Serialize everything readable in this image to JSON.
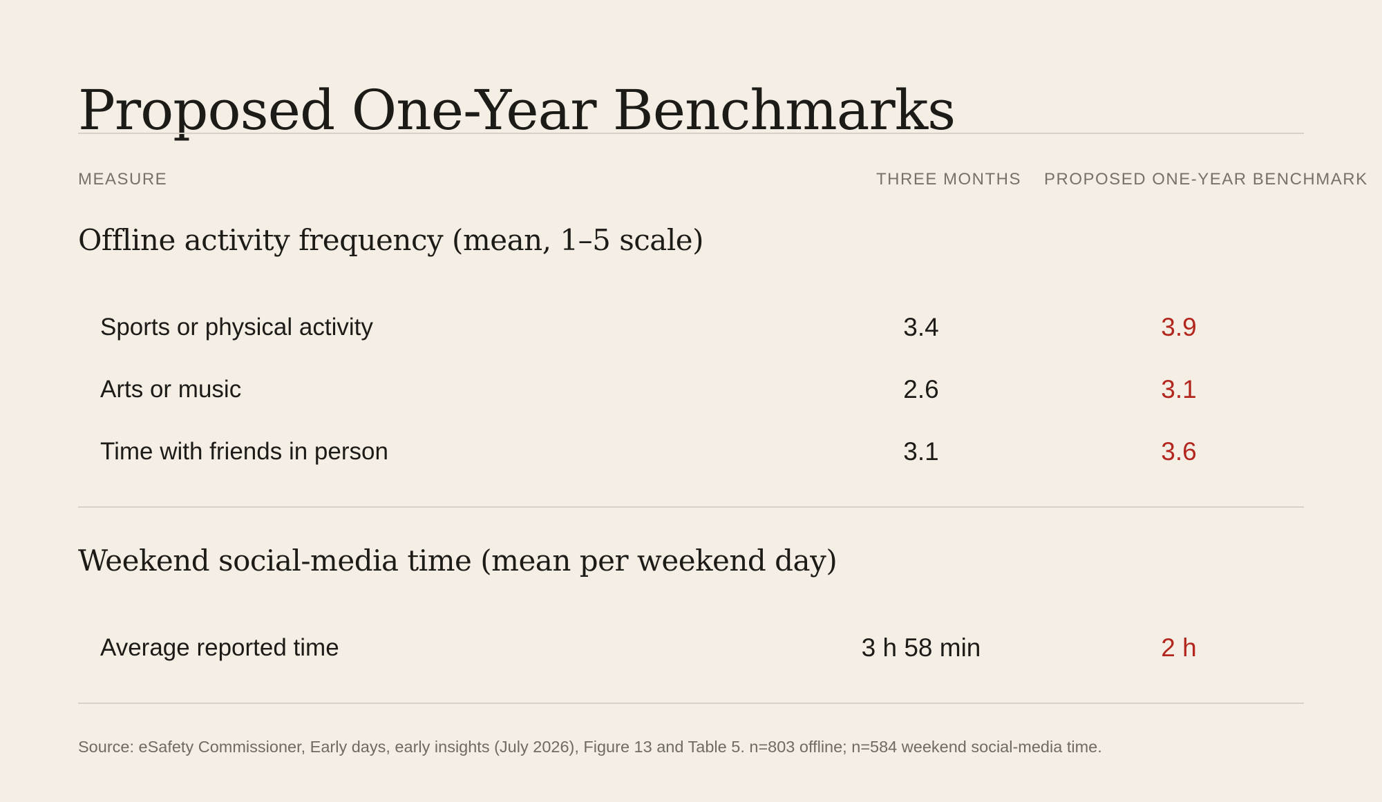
{
  "title": "Proposed One-Year Benchmarks",
  "columns": {
    "measure": "MEASURE",
    "three_months": "THREE MONTHS",
    "benchmark": "PROPOSED ONE-YEAR BENCHMARK"
  },
  "sections": [
    {
      "heading": "Offline activity frequency (mean, 1–5 scale)",
      "rows": [
        {
          "label": "Sports or physical activity",
          "three_months": "3.4",
          "benchmark": "3.9"
        },
        {
          "label": "Arts or music",
          "three_months": "2.6",
          "benchmark": "3.1"
        },
        {
          "label": "Time with friends in person",
          "three_months": "3.1",
          "benchmark": "3.6"
        }
      ]
    },
    {
      "heading": "Weekend social-media time (mean per weekend day)",
      "rows": [
        {
          "label": "Average reported time",
          "three_months": "3 h 58 min",
          "benchmark": "2 h"
        }
      ]
    }
  ],
  "source": "Source: eSafety Commissioner, Early days, early insights (July 2026), Figure 13 and Table 5. n=803 offline; n=584 weekend social-media time.",
  "colors": {
    "background": "#f4eee4",
    "text": "#1d1b18",
    "muted": "#77716a",
    "benchmark_accent": "#b3261e",
    "rule": "#d6d0c6"
  }
}
